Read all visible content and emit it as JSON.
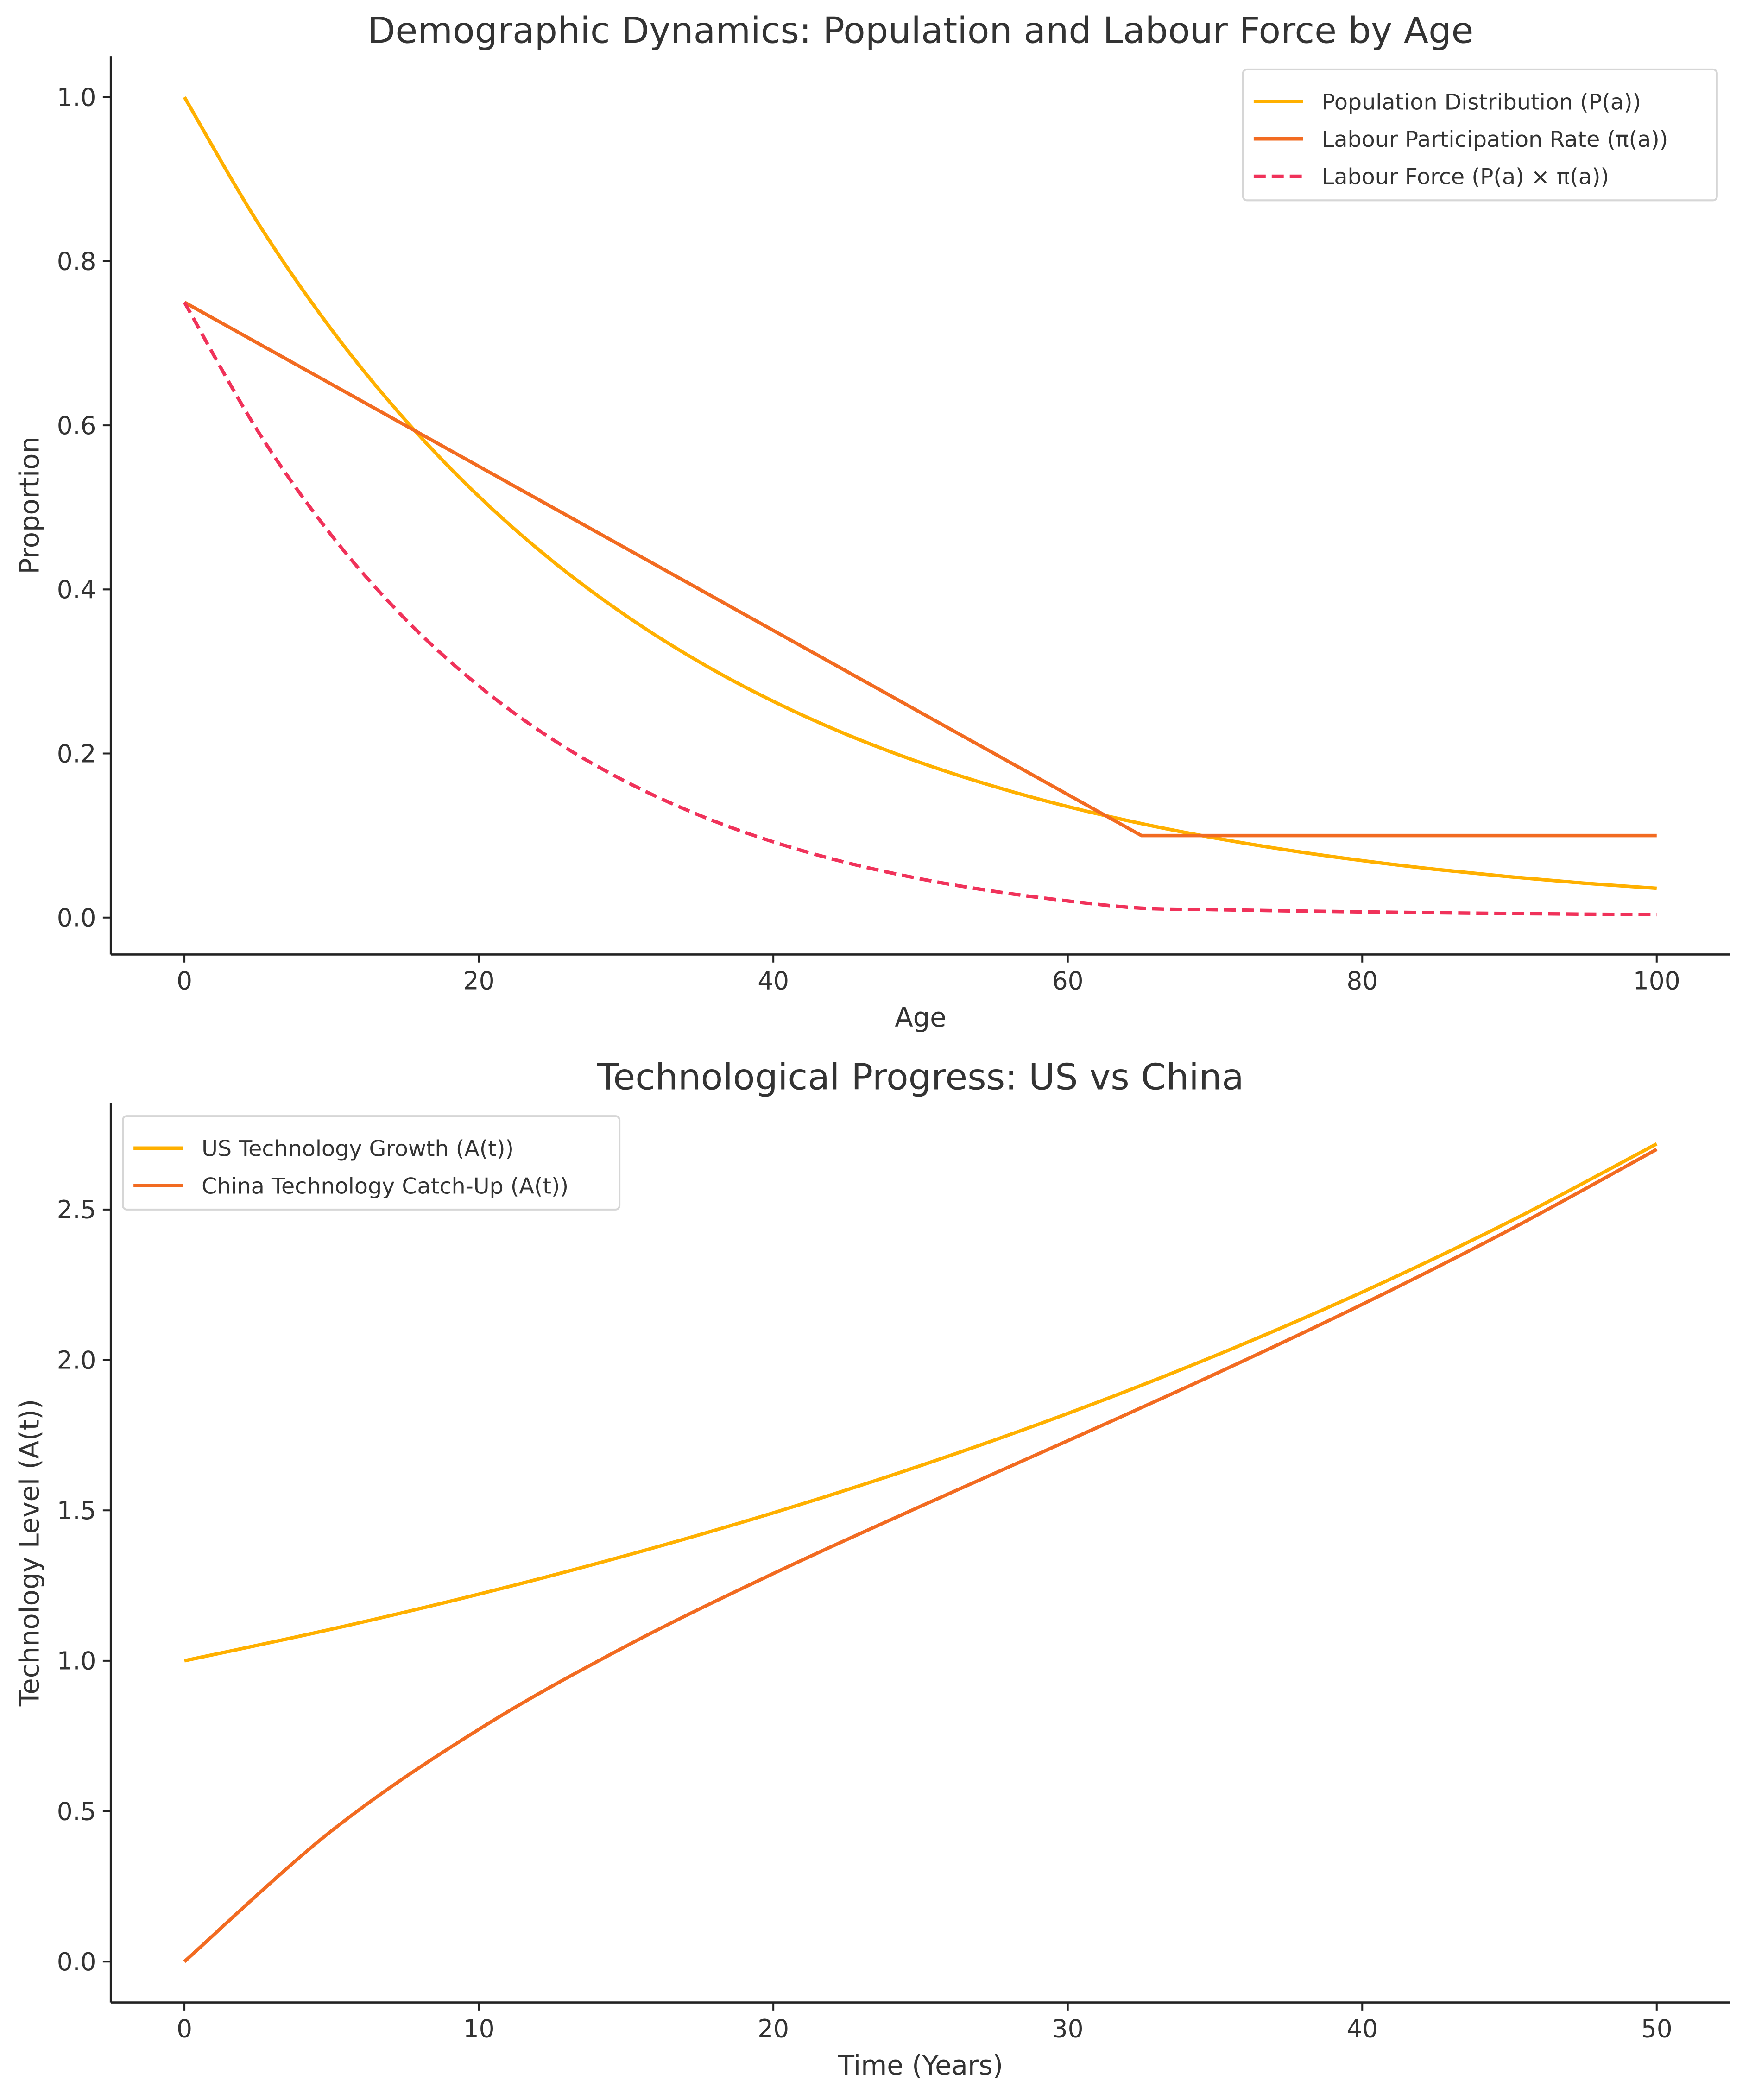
{
  "colors": {
    "population": "#FFB000",
    "participation": "#F26B21",
    "labour_force": "#F0325A",
    "us": "#FFB000",
    "china": "#F26B21",
    "text": "#333333"
  },
  "chart_data": [
    {
      "type": "line",
      "title": "Demographic Dynamics: Population and Labour Force by Age",
      "xlabel": "Age",
      "ylabel": "Proportion",
      "xlim": [
        -5,
        105
      ],
      "ylim": [
        -0.045,
        1.05
      ],
      "xticks": [
        0,
        20,
        40,
        60,
        80,
        100
      ],
      "yticks": [
        0.0,
        0.2,
        0.4,
        0.6,
        0.8,
        1.0
      ],
      "xtick_labels": [
        "0",
        "20",
        "40",
        "60",
        "80",
        "100"
      ],
      "ytick_labels": [
        "0.0",
        "0.2",
        "0.4",
        "0.6",
        "0.8",
        "1.0"
      ],
      "grid": false,
      "legend_position": "top-right",
      "x": [
        0,
        5,
        10,
        15,
        20,
        25,
        30,
        35,
        40,
        45,
        50,
        55,
        60,
        65,
        70,
        75,
        80,
        85,
        90,
        95,
        100
      ],
      "series": [
        {
          "name": "Population Distribution (P(a))",
          "style": "solid",
          "smooth": true,
          "color_key": "population",
          "values": [
            1.0,
            0.8465,
            0.7165,
            0.6065,
            0.5134,
            0.4346,
            0.3679,
            0.3114,
            0.2636,
            0.2231,
            0.1889,
            0.1599,
            0.1353,
            0.1146,
            0.097,
            0.0821,
            0.0695,
            0.0588,
            0.0498,
            0.0421,
            0.0357
          ]
        },
        {
          "name": "Labour Participation Rate (π(a))",
          "style": "solid",
          "smooth": false,
          "color_key": "participation",
          "values": [
            0.75,
            0.7,
            0.65,
            0.6,
            0.55,
            0.5,
            0.45,
            0.4,
            0.35,
            0.3,
            0.25,
            0.2,
            0.15,
            0.1,
            0.1,
            0.1,
            0.1,
            0.1,
            0.1,
            0.1,
            0.1
          ]
        },
        {
          "name": "Labour Force (P(a) × π(a))",
          "style": "dashed",
          "smooth": true,
          "color_key": "labour_force",
          "values": [
            0.75,
            0.5926,
            0.4657,
            0.3639,
            0.2824,
            0.2173,
            0.1656,
            0.1246,
            0.0923,
            0.0669,
            0.0472,
            0.032,
            0.0203,
            0.0115,
            0.0097,
            0.0082,
            0.007,
            0.0059,
            0.005,
            0.0042,
            0.0036
          ]
        }
      ]
    },
    {
      "type": "line",
      "title": "Technological Progress: US vs China",
      "xlabel": "Time (Years)",
      "ylabel": "Technology Level (A(t))",
      "xlim": [
        -2.5,
        52.5
      ],
      "ylim": [
        -0.136,
        2.855
      ],
      "xticks": [
        0,
        10,
        20,
        30,
        40,
        50
      ],
      "yticks": [
        0.0,
        0.5,
        1.0,
        1.5,
        2.0,
        2.5
      ],
      "xtick_labels": [
        "0",
        "10",
        "20",
        "30",
        "40",
        "50"
      ],
      "ytick_labels": [
        "0.0",
        "0.5",
        "1.0",
        "1.5",
        "2.0",
        "2.5"
      ],
      "grid": false,
      "legend_position": "top-left",
      "x": [
        0,
        5,
        10,
        15,
        20,
        25,
        30,
        35,
        40,
        45,
        50
      ],
      "series": [
        {
          "name": "US Technology Growth (A(t))",
          "style": "solid",
          "smooth": true,
          "color_key": "us",
          "values": [
            1.0,
            1.1052,
            1.2214,
            1.3499,
            1.4918,
            1.6487,
            1.8221,
            2.0138,
            2.2255,
            2.4596,
            2.7183
          ]
        },
        {
          "name": "China Technology Catch-Up (A(t))",
          "style": "solid",
          "smooth": true,
          "color_key": "china",
          "values": [
            0.0,
            0.4349,
            0.7721,
            1.0487,
            1.2899,
            1.5134,
            1.7314,
            1.953,
            2.1848,
            2.4323,
            2.7
          ]
        }
      ]
    }
  ]
}
